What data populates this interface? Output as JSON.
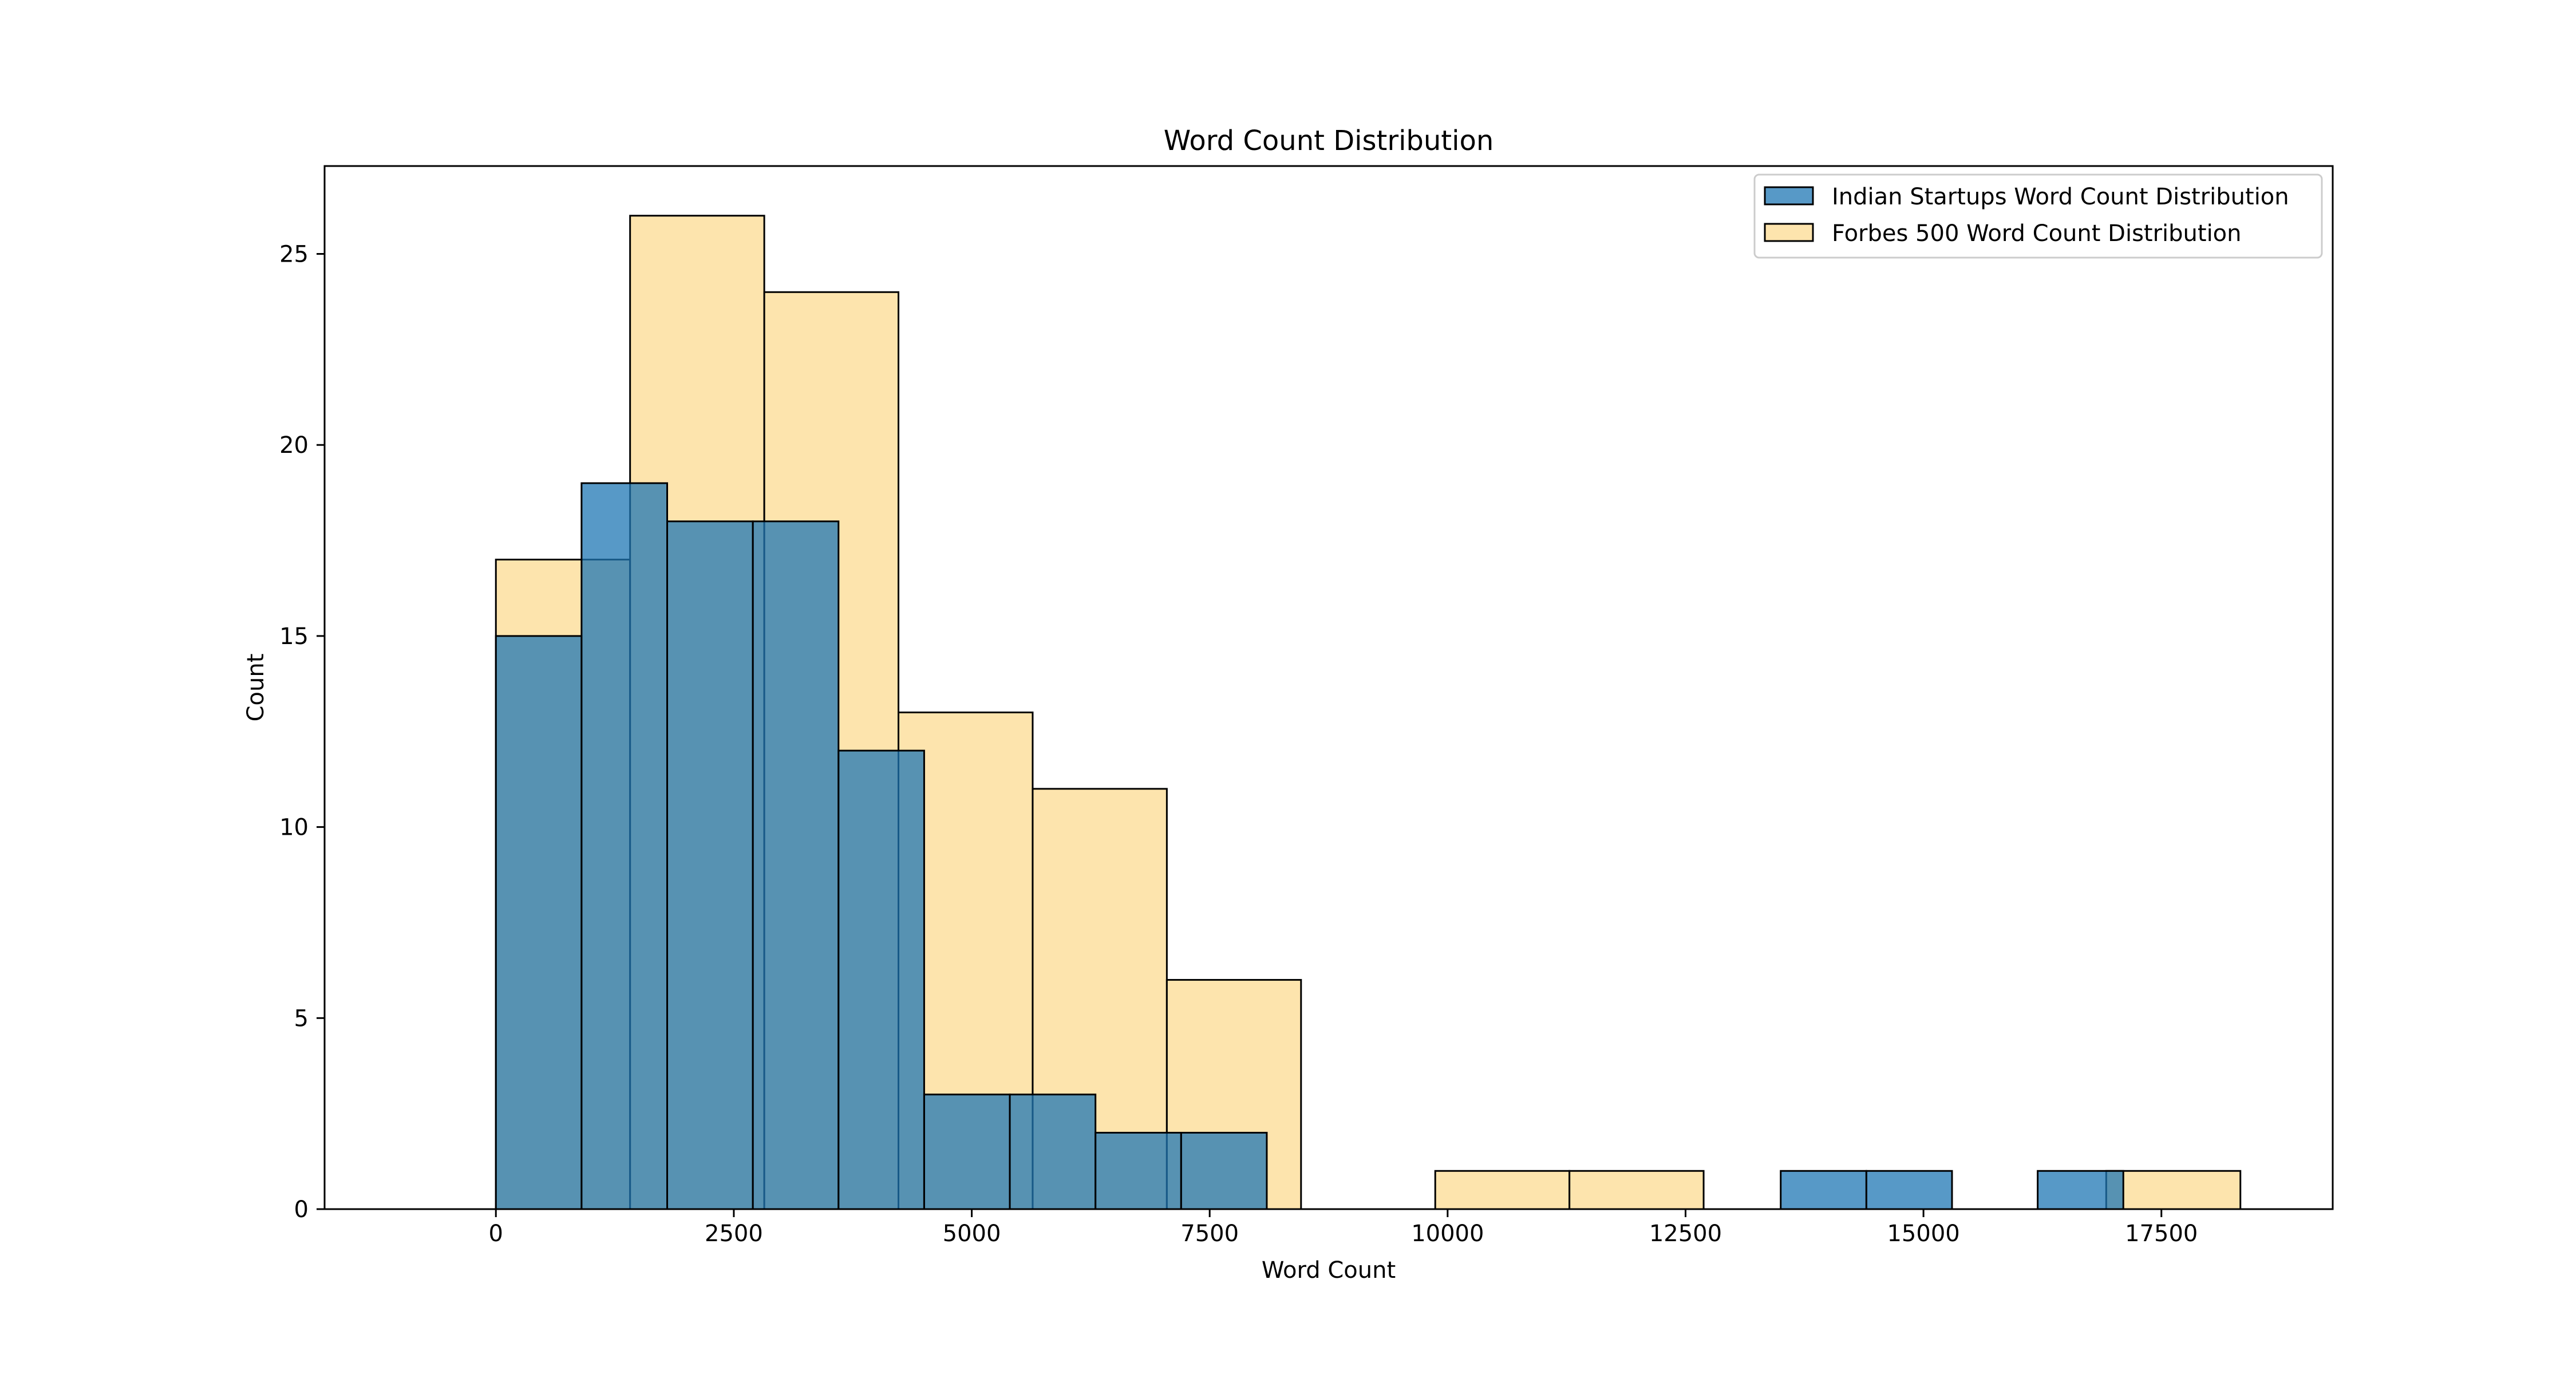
{
  "chart_data": {
    "type": "bar",
    "title": "Word Count Distribution",
    "xlabel": "Word Count",
    "ylabel": "Count",
    "xlim": [
      -1800,
      19300
    ],
    "ylim": [
      0,
      27.3
    ],
    "xticks": [
      0,
      2500,
      5000,
      7500,
      10000,
      12500,
      15000,
      17500
    ],
    "xtick_labels": [
      "0",
      "2500",
      "5000",
      "7500",
      "10000",
      "12500",
      "15000",
      "17500"
    ],
    "yticks": [
      0,
      5,
      10,
      15,
      20,
      25
    ],
    "ytick_labels": [
      "0",
      "5",
      "10",
      "15",
      "20",
      "25"
    ],
    "grid": false,
    "legend_position": "top-right",
    "series": [
      {
        "name": "Forbes 500 Word Count Distribution",
        "color": "#fddf9f",
        "alpha": 0.85,
        "bins": [
          {
            "x0": 0,
            "x1": 1410,
            "count": 17
          },
          {
            "x0": 1410,
            "x1": 2820,
            "count": 26
          },
          {
            "x0": 2820,
            "x1": 4230,
            "count": 24
          },
          {
            "x0": 4230,
            "x1": 5640,
            "count": 13
          },
          {
            "x0": 5640,
            "x1": 7050,
            "count": 11
          },
          {
            "x0": 7050,
            "x1": 8460,
            "count": 6
          },
          {
            "x0": 8460,
            "x1": 9870,
            "count": 0
          },
          {
            "x0": 9870,
            "x1": 11280,
            "count": 1
          },
          {
            "x0": 11280,
            "x1": 12690,
            "count": 1
          },
          {
            "x0": 12690,
            "x1": 14100,
            "count": 0
          },
          {
            "x0": 14100,
            "x1": 15510,
            "count": 0
          },
          {
            "x0": 15510,
            "x1": 16920,
            "count": 0
          },
          {
            "x0": 16920,
            "x1": 18330,
            "count": 1
          }
        ]
      },
      {
        "name": "Indian Startups Word Count Distribution",
        "color": "#1f77b4",
        "alpha": 0.75,
        "bins": [
          {
            "x0": 0,
            "x1": 900,
            "count": 15
          },
          {
            "x0": 900,
            "x1": 1800,
            "count": 19
          },
          {
            "x0": 1800,
            "x1": 2700,
            "count": 18
          },
          {
            "x0": 2700,
            "x1": 3600,
            "count": 18
          },
          {
            "x0": 3600,
            "x1": 4500,
            "count": 12
          },
          {
            "x0": 4500,
            "x1": 5400,
            "count": 3
          },
          {
            "x0": 5400,
            "x1": 6300,
            "count": 3
          },
          {
            "x0": 6300,
            "x1": 7200,
            "count": 2
          },
          {
            "x0": 7200,
            "x1": 8100,
            "count": 2
          },
          {
            "x0": 8100,
            "x1": 9000,
            "count": 0
          },
          {
            "x0": 9000,
            "x1": 9900,
            "count": 0
          },
          {
            "x0": 9900,
            "x1": 10800,
            "count": 0
          },
          {
            "x0": 10800,
            "x1": 11700,
            "count": 0
          },
          {
            "x0": 11700,
            "x1": 12600,
            "count": 0
          },
          {
            "x0": 12600,
            "x1": 13500,
            "count": 0
          },
          {
            "x0": 13500,
            "x1": 14400,
            "count": 1
          },
          {
            "x0": 14400,
            "x1": 15300,
            "count": 1
          },
          {
            "x0": 15300,
            "x1": 16200,
            "count": 0
          },
          {
            "x0": 16200,
            "x1": 17100,
            "count": 1
          }
        ]
      }
    ],
    "legend": [
      {
        "label": "Indian Startups Word Count Distribution",
        "color": "#1f77b4"
      },
      {
        "label": "Forbes 500 Word Count Distribution",
        "color": "#fddf9f"
      }
    ]
  }
}
